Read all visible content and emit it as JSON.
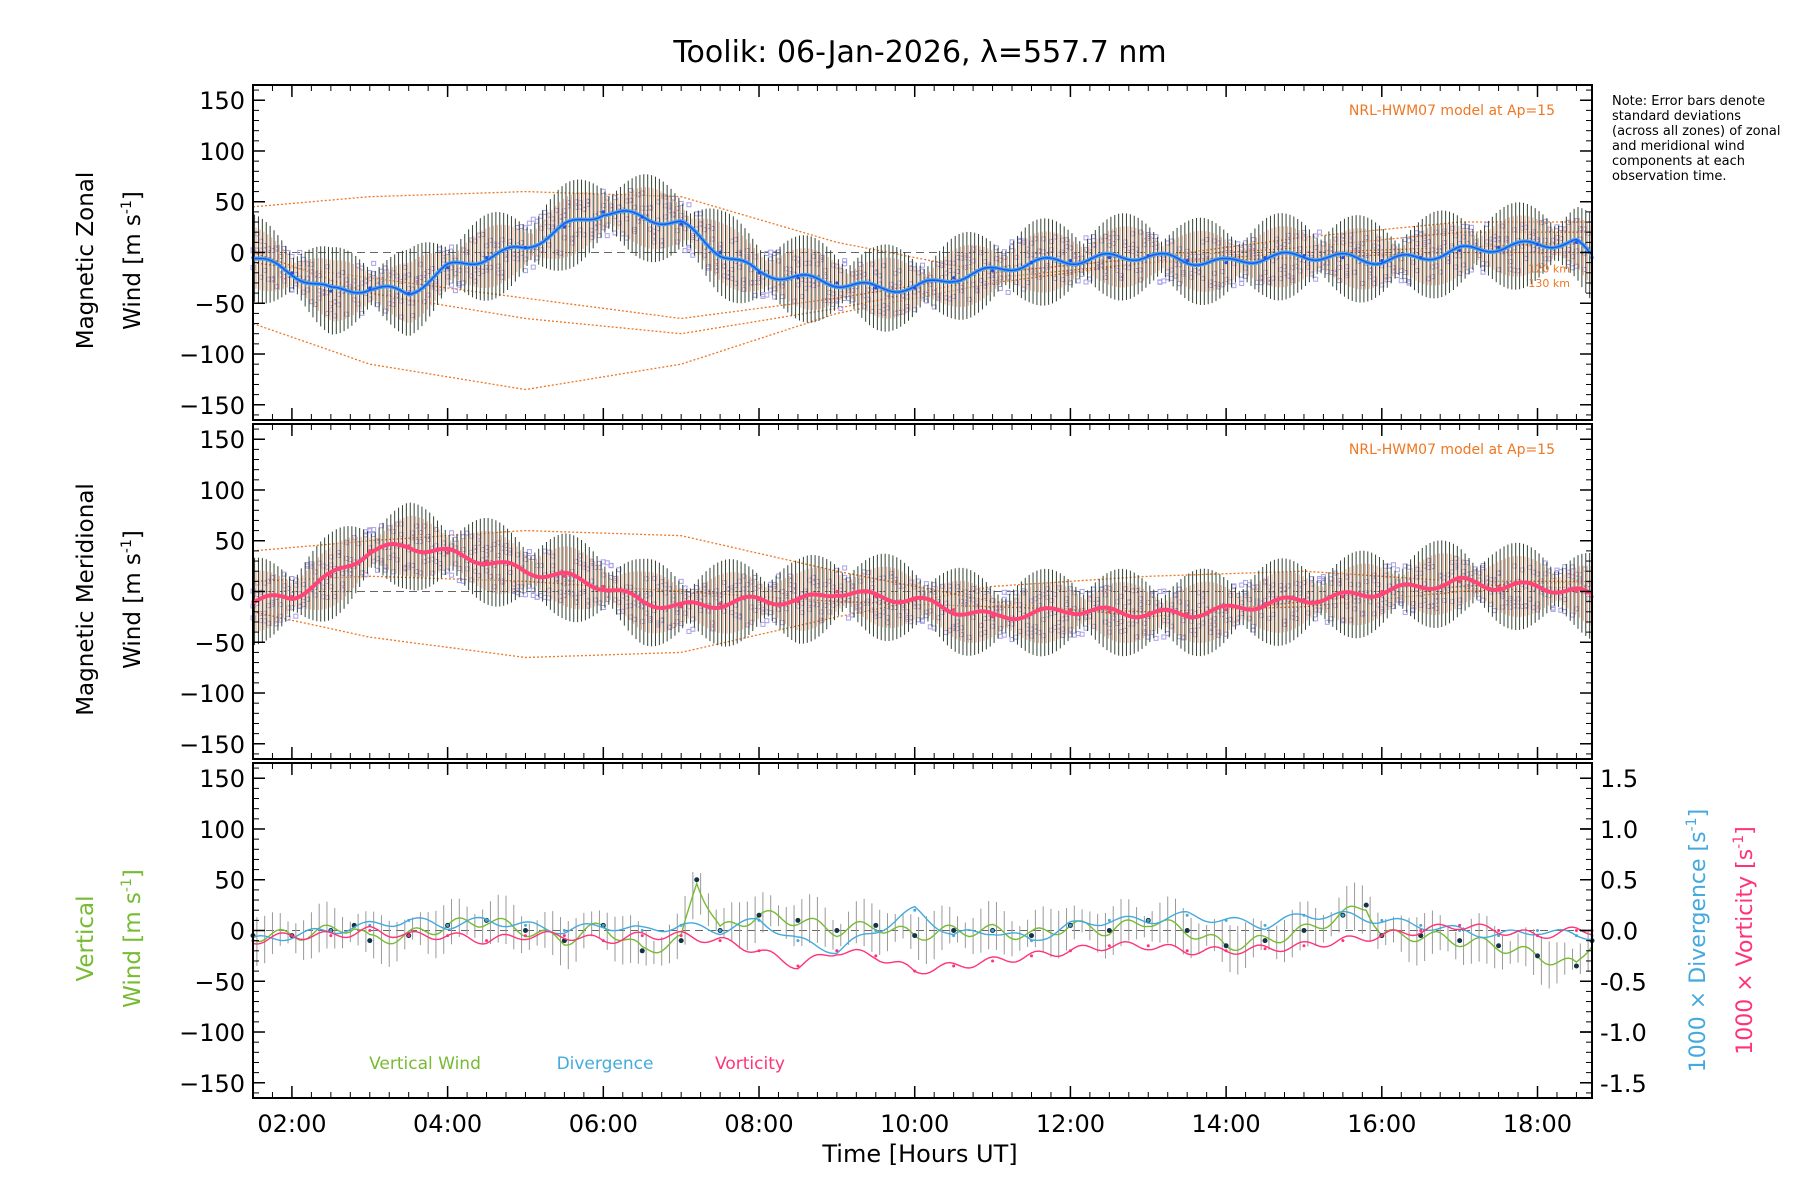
{
  "title": "Toolik: 06-Jan-2026, λ=557.7 nm",
  "note": "Note: Error bars denote standard deviations (across all zones) of zonal and meridional wind components at each observation time.",
  "xlabel": "Time [Hours UT]",
  "colors": {
    "zonal": "#2255ee",
    "zonal_light": "#44aaee",
    "meridional": "#ff4477",
    "vertical": "#77bb33",
    "divergence": "#44aadd",
    "vorticity": "#ff3377",
    "model": "#ee7722",
    "scatter": "#a9a0e8",
    "errorbar": "#334433",
    "errorfill": "#f4b8a0"
  },
  "chart_data": [
    {
      "type": "line",
      "panel": "zonal",
      "ylabel_line1": "Magnetic Zonal",
      "ylabel_line2": "Wind [m s",
      "ylabel_sup": "-1",
      "ylabel_end": "]",
      "model_label": "NRL-HWM07 model at Ap=15",
      "model_alt_labels": [
        "120 km",
        "130 km"
      ],
      "xlim": [
        1.5,
        18.7
      ],
      "ylim": [
        -165,
        165
      ],
      "yticks": [
        150,
        100,
        50,
        0,
        -50,
        -100,
        -150
      ],
      "x": [
        1.5,
        2.0,
        2.5,
        3.0,
        3.5,
        4.0,
        4.5,
        5.0,
        5.5,
        6.0,
        6.5,
        7.0,
        7.5,
        8.0,
        8.5,
        9.0,
        9.5,
        10.0,
        10.5,
        11.0,
        11.5,
        12.0,
        12.5,
        13.0,
        13.5,
        14.0,
        14.5,
        15.0,
        15.5,
        16.0,
        16.5,
        17.0,
        17.5,
        18.0,
        18.5,
        18.7
      ],
      "values": [
        -5,
        -20,
        -38,
        -35,
        -40,
        -15,
        -5,
        5,
        25,
        40,
        35,
        28,
        0,
        -20,
        -25,
        -30,
        -35,
        -35,
        -25,
        -18,
        -10,
        -8,
        -5,
        -3,
        -8,
        -10,
        -5,
        -3,
        -5,
        -8,
        -5,
        2,
        5,
        8,
        10,
        -5
      ],
      "model_curves": [
        {
          "x": [
            1.5,
            3.0,
            5.0,
            7.0,
            9.0,
            11.0,
            13.0,
            15.0,
            17.0,
            18.7
          ],
          "values": [
            45,
            55,
            60,
            55,
            10,
            -20,
            -5,
            15,
            30,
            30
          ]
        },
        {
          "x": [
            1.5,
            3.0,
            5.0,
            7.0,
            9.0,
            11.0,
            13.0,
            15.0,
            17.0,
            18.7
          ],
          "values": [
            -70,
            -110,
            -135,
            -110,
            -60,
            -30,
            -10,
            0,
            5,
            10
          ]
        },
        {
          "x": [
            1.5,
            3.0,
            5.0,
            7.0,
            9.0,
            11.0,
            13.0,
            15.0,
            17.0,
            18.7
          ],
          "values": [
            0,
            -40,
            -65,
            -80,
            -55,
            -25,
            -10,
            -5,
            0,
            0
          ]
        },
        {
          "x": [
            1.5,
            3.0,
            5.0,
            7.0,
            9.0,
            11.0,
            13.0,
            15.0,
            17.0,
            18.7
          ],
          "values": [
            -10,
            -25,
            -45,
            -65,
            -45,
            -20,
            -5,
            5,
            20,
            20
          ]
        }
      ]
    },
    {
      "type": "line",
      "panel": "meridional",
      "ylabel_line1": "Magnetic Meridional",
      "ylabel_line2": "Wind [m s",
      "ylabel_sup": "-1",
      "ylabel_end": "]",
      "model_label": "NRL-HWM07 model at Ap=15",
      "xlim": [
        1.5,
        18.7
      ],
      "ylim": [
        -165,
        165
      ],
      "yticks": [
        150,
        100,
        50,
        0,
        -50,
        -100,
        -150
      ],
      "x": [
        1.5,
        2.0,
        2.5,
        3.0,
        3.5,
        4.0,
        4.5,
        5.0,
        5.5,
        6.0,
        6.5,
        7.0,
        7.5,
        8.0,
        8.5,
        9.0,
        9.5,
        10.0,
        10.5,
        11.0,
        11.5,
        12.0,
        12.5,
        13.0,
        13.5,
        14.0,
        14.5,
        15.0,
        15.5,
        16.0,
        16.5,
        17.0,
        17.5,
        18.0,
        18.5,
        18.7
      ],
      "values": [
        -10,
        -5,
        15,
        40,
        45,
        38,
        30,
        20,
        15,
        5,
        -10,
        -15,
        -12,
        -8,
        -10,
        0,
        -5,
        -8,
        -18,
        -25,
        -22,
        -18,
        -20,
        -22,
        -22,
        -18,
        -12,
        -8,
        -5,
        0,
        5,
        10,
        5,
        5,
        0,
        -5
      ],
      "model_curves": [
        {
          "x": [
            1.5,
            3.0,
            5.0,
            7.0,
            9.0,
            11.0,
            13.0,
            15.0,
            17.0,
            18.7
          ],
          "values": [
            40,
            50,
            60,
            55,
            20,
            -10,
            -25,
            -10,
            5,
            10
          ]
        },
        {
          "x": [
            1.5,
            3.0,
            5.0,
            7.0,
            9.0,
            11.0,
            13.0,
            15.0,
            17.0,
            18.7
          ],
          "values": [
            -20,
            -45,
            -65,
            -60,
            -25,
            5,
            15,
            20,
            10,
            10
          ]
        },
        {
          "x": [
            1.5,
            3.0,
            5.0,
            7.0,
            9.0,
            11.0,
            13.0,
            15.0,
            17.0,
            18.7
          ],
          "values": [
            10,
            15,
            10,
            0,
            -10,
            -15,
            -20,
            -15,
            0,
            5
          ]
        }
      ]
    },
    {
      "type": "line",
      "panel": "vertical",
      "ylabel_line1": "Vertical",
      "ylabel_line2": "Wind [m s",
      "ylabel_sup": "-1",
      "ylabel_end": "]",
      "right_label_div": "1000 × Divergence [s",
      "right_label_vor": "1000 × Vorticity [s",
      "right_sup": "-1",
      "right_end": "]",
      "xlim": [
        1.5,
        18.7
      ],
      "ylim": [
        -165,
        165
      ],
      "yticks": [
        150,
        100,
        50,
        0,
        -50,
        -100,
        -150
      ],
      "right_ylim": [
        -1.65,
        1.65
      ],
      "right_yticks": [
        "1.5",
        "1.0",
        "0.5",
        "0.0",
        "-0.5",
        "-1.0",
        "-1.5"
      ],
      "right_ytick_values": [
        1.5,
        1.0,
        0.5,
        0.0,
        -0.5,
        -1.0,
        -1.5
      ],
      "legend": [
        "Vertical Wind",
        "Divergence",
        "Vorticity"
      ],
      "series": [
        {
          "name": "Vertical Wind",
          "x": [
            1.5,
            2.0,
            2.5,
            2.8,
            3.0,
            3.5,
            4.0,
            4.5,
            5.0,
            5.5,
            6.0,
            6.5,
            7.0,
            7.2,
            7.5,
            8.0,
            8.5,
            9.0,
            9.5,
            10.0,
            10.5,
            11.0,
            11.5,
            12.0,
            12.5,
            13.0,
            13.5,
            14.0,
            14.5,
            15.0,
            15.5,
            15.8,
            16.0,
            16.5,
            17.0,
            17.5,
            18.0,
            18.5,
            18.7
          ],
          "values": [
            -5,
            -5,
            0,
            5,
            -10,
            -5,
            5,
            10,
            0,
            -10,
            5,
            -20,
            -10,
            50,
            0,
            15,
            10,
            0,
            5,
            -5,
            0,
            0,
            -5,
            5,
            0,
            10,
            0,
            -15,
            -10,
            0,
            15,
            25,
            -5,
            -5,
            -10,
            -15,
            -25,
            -35,
            -10
          ]
        },
        {
          "name": "Divergence",
          "x": [
            1.5,
            2.0,
            2.5,
            3.0,
            3.5,
            4.0,
            4.5,
            5.0,
            5.5,
            6.0,
            6.5,
            7.0,
            7.5,
            8.0,
            8.5,
            9.0,
            9.5,
            10.0,
            10.5,
            11.0,
            11.5,
            12.0,
            12.5,
            13.0,
            13.5,
            14.0,
            14.5,
            15.0,
            15.5,
            16.0,
            16.5,
            17.0,
            17.5,
            18.0,
            18.5,
            18.7
          ],
          "values": [
            -0.1,
            -0.05,
            0.0,
            0.05,
            0.1,
            0.05,
            0.1,
            0.05,
            0.0,
            0.05,
            0.0,
            0.05,
            0.0,
            0.1,
            -0.1,
            -0.2,
            0.0,
            0.2,
            -0.05,
            0.0,
            -0.1,
            0.05,
            0.1,
            0.1,
            0.15,
            0.1,
            0.05,
            0.15,
            0.15,
            0.1,
            0.05,
            0.0,
            -0.05,
            0.0,
            -0.05,
            -0.05
          ]
        },
        {
          "name": "Vorticity",
          "x": [
            1.5,
            2.0,
            2.5,
            3.0,
            3.5,
            4.0,
            4.5,
            5.0,
            5.5,
            6.0,
            6.5,
            7.0,
            7.5,
            8.0,
            8.5,
            9.0,
            9.5,
            10.0,
            10.5,
            11.0,
            11.5,
            12.0,
            12.5,
            13.0,
            13.5,
            14.0,
            14.5,
            15.0,
            15.5,
            16.0,
            16.5,
            17.0,
            17.5,
            18.0,
            18.5,
            18.7
          ],
          "values": [
            -0.1,
            -0.05,
            -0.05,
            0.0,
            -0.05,
            -0.05,
            -0.1,
            -0.05,
            -0.05,
            -0.1,
            -0.05,
            -0.05,
            -0.1,
            -0.2,
            -0.35,
            -0.2,
            -0.25,
            -0.4,
            -0.35,
            -0.3,
            -0.25,
            -0.2,
            -0.15,
            -0.15,
            -0.2,
            -0.2,
            -0.18,
            -0.15,
            -0.1,
            -0.05,
            0.0,
            0.05,
            0.0,
            -0.05,
            0.0,
            0.0
          ]
        }
      ]
    }
  ],
  "xticks": [
    "02:00",
    "04:00",
    "06:00",
    "08:00",
    "10:00",
    "12:00",
    "14:00",
    "16:00",
    "18:00"
  ],
  "xtick_values": [
    2,
    4,
    6,
    8,
    10,
    12,
    14,
    16,
    18
  ]
}
